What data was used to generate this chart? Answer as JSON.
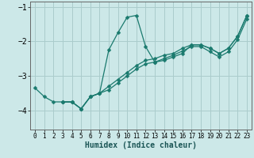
{
  "xlabel": "Humidex (Indice chaleur)",
  "background_color": "#cce8e8",
  "grid_color": "#aacccc",
  "line_color": "#1a7a6e",
  "xlim": [
    -0.5,
    23.5
  ],
  "ylim": [
    -4.55,
    -0.85
  ],
  "yticks": [
    -4,
    -3,
    -2,
    -1
  ],
  "xticks": [
    0,
    1,
    2,
    3,
    4,
    5,
    6,
    7,
    8,
    9,
    10,
    11,
    12,
    13,
    14,
    15,
    16,
    17,
    18,
    19,
    20,
    21,
    22,
    23
  ],
  "line1_x": [
    0,
    1,
    2,
    3,
    4,
    5,
    6,
    7,
    8,
    9,
    10,
    11,
    12,
    13,
    14,
    15,
    16,
    17,
    18,
    19,
    20,
    21,
    22,
    23
  ],
  "line1_y": [
    -3.35,
    -3.6,
    -3.75,
    -3.75,
    -3.75,
    -3.95,
    -3.6,
    -3.5,
    -2.25,
    -1.75,
    -1.3,
    -1.25,
    -2.15,
    -2.6,
    -2.55,
    -2.45,
    -2.35,
    -2.1,
    -2.1,
    -2.2,
    -2.35,
    -2.2,
    -1.85,
    -1.25
  ],
  "line2_x": [
    3,
    4,
    5,
    6,
    7,
    8,
    9,
    10,
    11,
    12,
    13,
    14,
    15,
    16,
    17,
    18,
    19,
    20,
    21,
    22,
    23
  ],
  "line2_y": [
    -3.75,
    -3.75,
    -3.95,
    -3.6,
    -3.5,
    -3.3,
    -3.1,
    -2.9,
    -2.7,
    -2.55,
    -2.5,
    -2.4,
    -2.35,
    -2.2,
    -2.1,
    -2.1,
    -2.2,
    -2.35,
    -2.2,
    -1.85,
    -1.25
  ],
  "line3_x": [
    3,
    4,
    5,
    6,
    7,
    8,
    9,
    10,
    11,
    12,
    13,
    14,
    15,
    16,
    17,
    18,
    19,
    20,
    21,
    22,
    23
  ],
  "line3_y": [
    -3.75,
    -3.75,
    -3.95,
    -3.6,
    -3.5,
    -3.4,
    -3.2,
    -3.0,
    -2.8,
    -2.65,
    -2.6,
    -2.5,
    -2.4,
    -2.28,
    -2.15,
    -2.15,
    -2.3,
    -2.45,
    -2.3,
    -1.95,
    -1.35
  ]
}
